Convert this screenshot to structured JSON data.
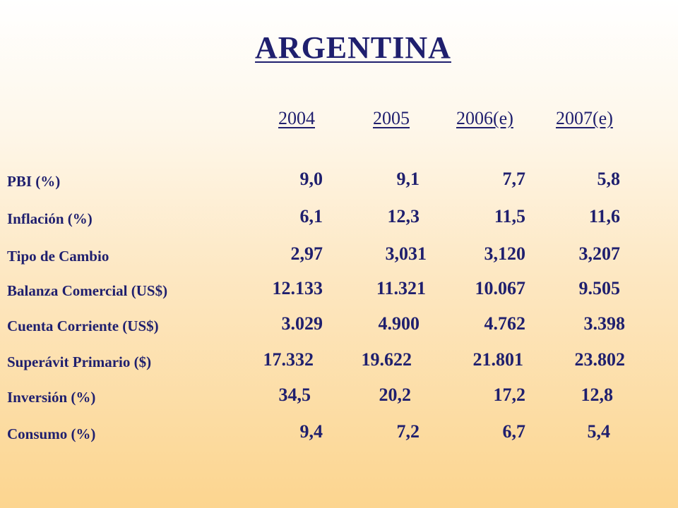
{
  "title": "ARGENTINA",
  "years": [
    "2004",
    "2005",
    "2006(e)",
    "2007(e)"
  ],
  "rows": [
    {
      "label": "PBI (%)",
      "values": [
        "9,0",
        "9,1",
        "7,7",
        "5,8"
      ]
    },
    {
      "label": "Inflación (%)",
      "values": [
        "6,1",
        "12,3",
        "11,5",
        "11,6"
      ]
    },
    {
      "label": "Tipo de Cambio",
      "values": [
        "2,97",
        "3,031",
        "3,120",
        "3,207"
      ]
    },
    {
      "label": "Balanza Comercial (US$)",
      "values": [
        "12.133",
        "11.321",
        "10.067",
        "9.505"
      ]
    },
    {
      "label": "Cuenta Corriente (US$)",
      "values": [
        "3.029",
        "4.900",
        "4.762",
        "3.398"
      ]
    },
    {
      "label": "Superávit Primario ($)",
      "values": [
        "17.332",
        "19.622",
        "21.801",
        "23.802"
      ]
    },
    {
      "label": "Inversión (%)",
      "values": [
        "34,5",
        "20,2",
        "17,2",
        "12,8"
      ]
    },
    {
      "label": "Consumo (%)",
      "values": [
        "9,4",
        "7,2",
        "6,7",
        "5,4"
      ]
    }
  ]
}
